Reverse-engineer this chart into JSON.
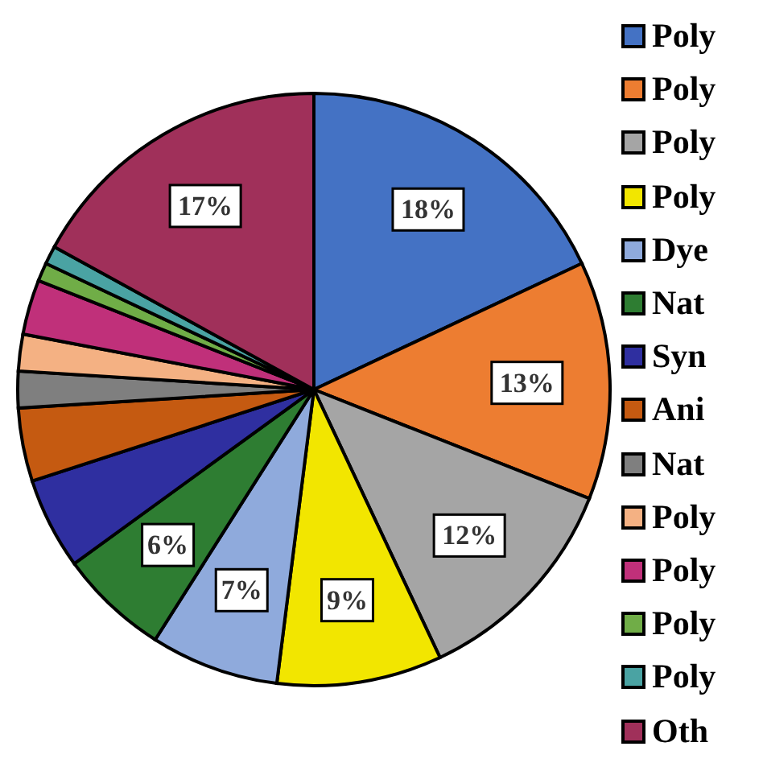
{
  "chart_data": {
    "type": "pie",
    "categories": [
      "Poly",
      "Poly",
      "Poly",
      "Poly",
      "Dye",
      "Nat",
      "Syn",
      "Ani",
      "Nat",
      "Poly",
      "Poly",
      "Poly",
      "Poly",
      "Oth"
    ],
    "values": [
      18,
      13,
      12,
      9,
      7,
      6,
      5,
      4,
      2,
      2,
      3,
      1,
      1,
      17
    ],
    "value_labels": [
      "18%",
      "13%",
      "12%",
      "9%",
      "7%",
      "6%",
      null,
      null,
      null,
      null,
      null,
      null,
      null,
      "17%"
    ],
    "colors": [
      "#4472c4",
      "#ed7d31",
      "#a5a5a5",
      "#f2e600",
      "#8faadc",
      "#2e7d32",
      "#2f2fa0",
      "#c55a11",
      "#7f7f7f",
      "#f4b183",
      "#c0307a",
      "#70ad47",
      "#4aa3a3",
      "#a0305a"
    ],
    "legend": "right"
  }
}
